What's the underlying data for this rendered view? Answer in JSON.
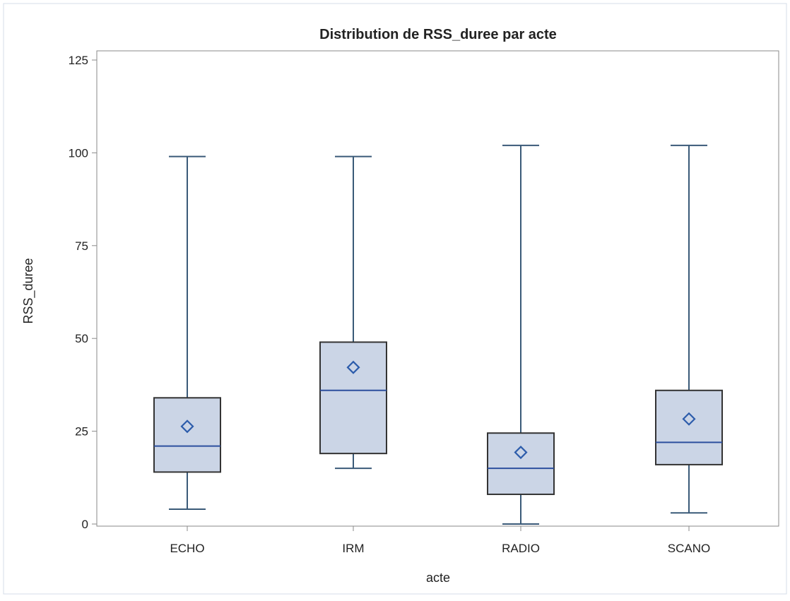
{
  "chart_data": {
    "type": "box",
    "title": "Distribution de RSS_duree par acte",
    "xlabel": "acte",
    "ylabel": "RSS_duree",
    "categories": [
      "ECHO",
      "IRM",
      "RADIO",
      "SCANO"
    ],
    "ylim": [
      0,
      125
    ],
    "yticks": [
      0,
      25,
      50,
      75,
      100,
      125
    ],
    "grid": false,
    "boxes": [
      {
        "category": "ECHO",
        "whisker_low": 4,
        "q1": 14,
        "median": 21,
        "q3": 34,
        "whisker_high": 99,
        "mean": 26.3
      },
      {
        "category": "IRM",
        "whisker_low": 15,
        "q1": 19,
        "median": 36,
        "q3": 49,
        "whisker_high": 99,
        "mean": 42.2
      },
      {
        "category": "RADIO",
        "whisker_low": 0,
        "q1": 8,
        "median": 15,
        "q3": 24.5,
        "whisker_high": 102,
        "mean": 19.3
      },
      {
        "category": "SCANO",
        "whisker_low": 3,
        "q1": 16,
        "median": 22,
        "q3": 36,
        "whisker_high": 102,
        "mean": 28.3
      }
    ],
    "colors": {
      "box_fill": "#cbd5e6",
      "box_stroke": "#333333",
      "whisker": "#3a5a78",
      "median": "#2c4f9e",
      "mean_marker": "#2c5cab",
      "frame": "#8a8a8a"
    }
  }
}
